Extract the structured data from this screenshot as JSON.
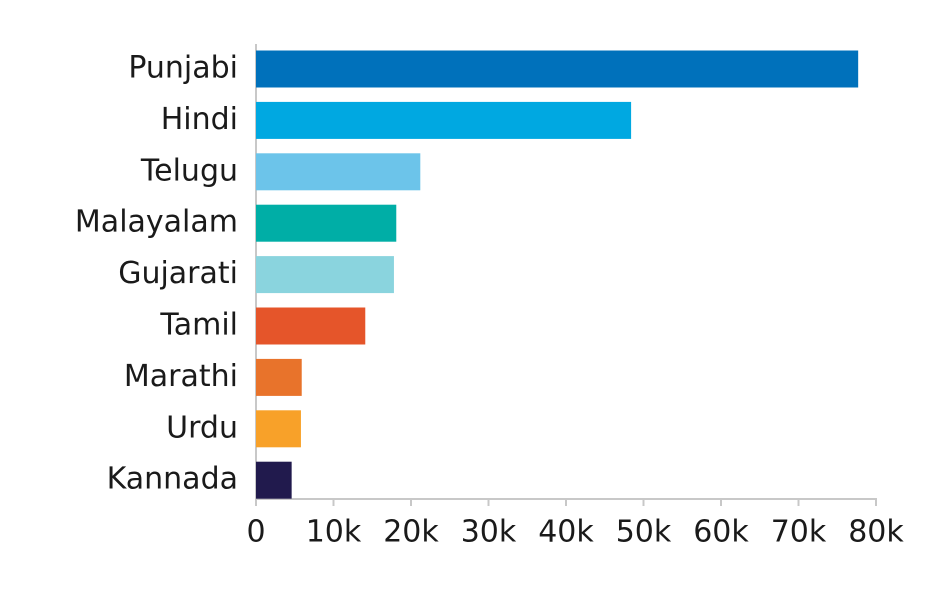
{
  "chart_data": {
    "type": "hbar",
    "categories": [
      "Punjabi",
      "Hindi",
      "Telugu",
      "Malayalam",
      "Gujarati",
      "Tamil",
      "Marathi",
      "Urdu",
      "Kannada"
    ],
    "values": [
      77700,
      48400,
      21200,
      18100,
      17800,
      14100,
      5900,
      5800,
      4600
    ],
    "colors": [
      "#0071bb",
      "#00a8e1",
      "#6cc4ea",
      "#00aea6",
      "#8ad4de",
      "#e5552a",
      "#e8732b",
      "#f8a129",
      "#211a4d"
    ],
    "xlim": [
      0,
      80000
    ],
    "xticks": [
      0,
      {
        "value": 10000,
        "label": "10k"
      },
      {
        "value": 20000,
        "label": "20k"
      },
      {
        "value": 30000,
        "label": "30k"
      },
      {
        "value": 40000,
        "label": "40k"
      },
      {
        "value": 50000,
        "label": "50k"
      },
      {
        "value": 60000,
        "label": "60k"
      },
      {
        "value": 70000,
        "label": "70k"
      },
      {
        "value": 80000,
        "label": "80k"
      }
    ]
  }
}
